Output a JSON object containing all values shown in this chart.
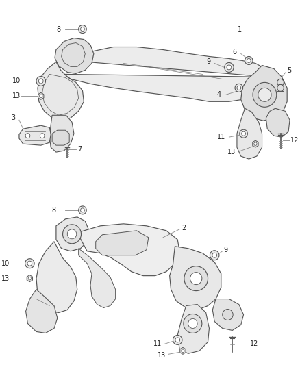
{
  "bg_color": "#ffffff",
  "fig_width": 4.38,
  "fig_height": 5.33,
  "dpi": 100,
  "line_color": "#555555",
  "leader_color": "#888888",
  "text_color": "#222222",
  "part_fontsize": 7.0,
  "label_fontsize": 7.0
}
